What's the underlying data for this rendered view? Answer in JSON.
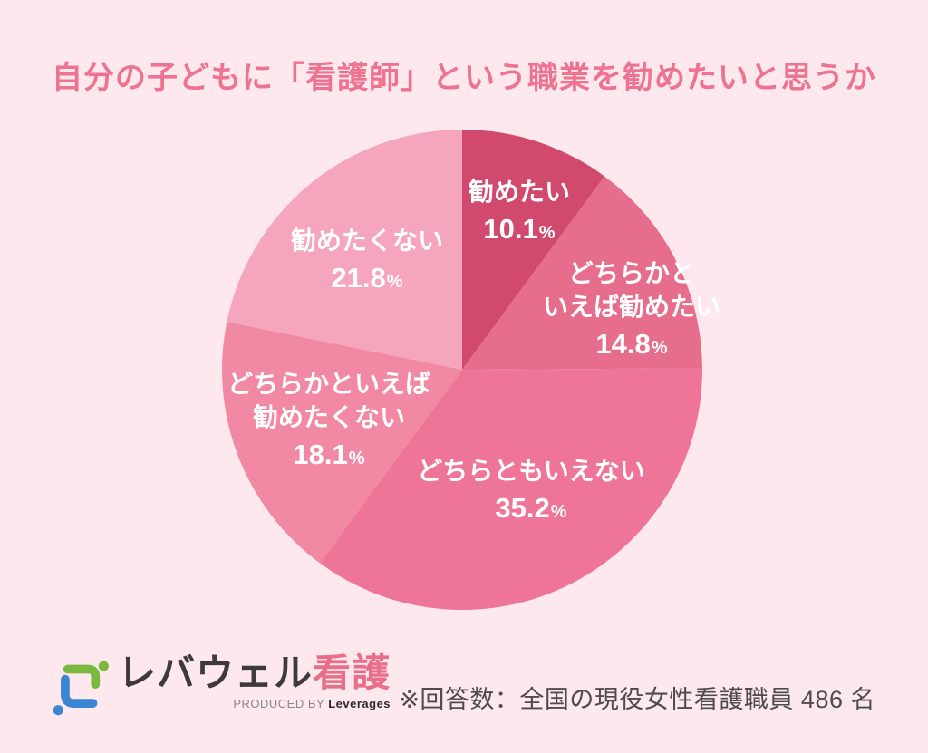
{
  "title": "自分の子どもに「看護師」という職業を勧めたいと思うか",
  "chart_data": {
    "type": "pie",
    "title": "自分の子どもに「看護師」という職業を勧めたいと思うか",
    "start_angle_deg": 0,
    "direction": "clockwise",
    "unit": "%",
    "slices": [
      {
        "label": "勧めたい",
        "label_lines": [
          "勧めたい"
        ],
        "value": 10.1,
        "color": "#d14a6e"
      },
      {
        "label": "どちらかといえば勧めたい",
        "label_lines": [
          "どちらかと",
          "いえば勧めたい"
        ],
        "value": 14.8,
        "color": "#e66e8c"
      },
      {
        "label": "どちらともいえない",
        "label_lines": [
          "どちらともいえない"
        ],
        "value": 35.2,
        "color": "#ef7598"
      },
      {
        "label": "どちらかといえば勧めたくない",
        "label_lines": [
          "どちらかといえば",
          "勧めたくない"
        ],
        "value": 18.1,
        "color": "#f189a5"
      },
      {
        "label": "勧めたくない",
        "label_lines": [
          "勧めたくない"
        ],
        "value": 21.8,
        "color": "#f5a6bc"
      }
    ]
  },
  "footer": {
    "note": "※回答数：全国の現役女性看護職員 486 名",
    "logo": {
      "brand_main": "レバウェル",
      "brand_accent": "看護",
      "produced_by": "PRODUCED BY",
      "company": "Leverages",
      "mark_blue": "#3a86d3",
      "mark_green": "#7ab93f"
    }
  },
  "colors": {
    "background": "#fde9ed",
    "title_text": "#ee7390",
    "label_text": "#ffffff",
    "note_text": "#4f4b4c"
  }
}
